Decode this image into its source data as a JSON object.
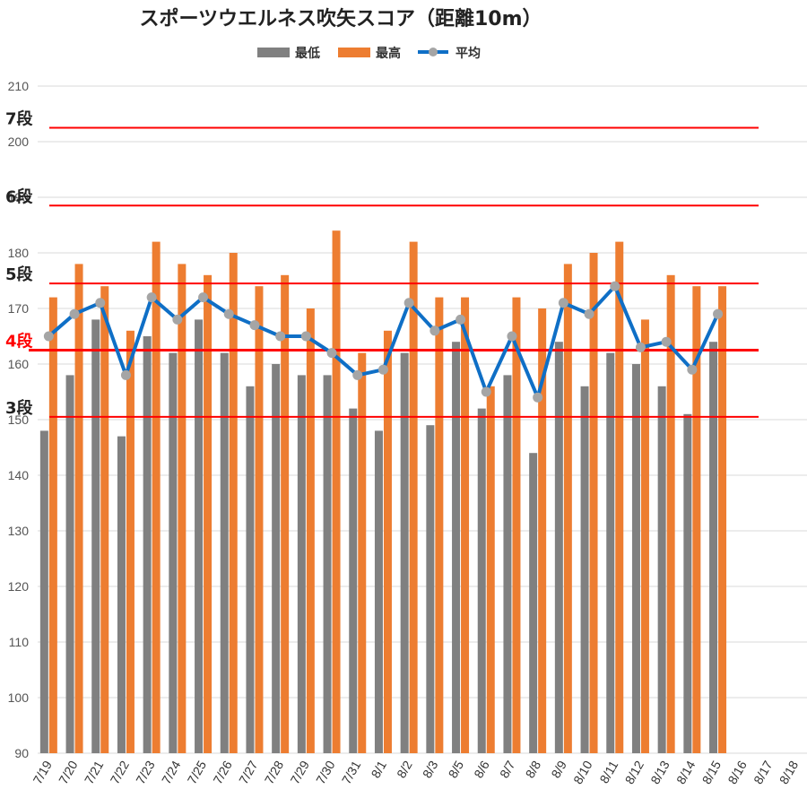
{
  "colors": {
    "min": "#808080",
    "max": "#ed7d31",
    "avg_line": "#0f6fc6",
    "avg_marker": "#a5a5a5",
    "rank_line": "#ff0000",
    "grid": "#d9d9d9"
  },
  "chart_data": {
    "type": "bar",
    "title": "スポーツウエルネス吹矢スコア（距離10m）",
    "categories": [
      "7/19",
      "7/20",
      "7/21",
      "7/22",
      "7/23",
      "7/24",
      "7/25",
      "7/26",
      "7/27",
      "7/28",
      "7/29",
      "7/30",
      "7/31",
      "8/1",
      "8/2",
      "8/3",
      "8/5",
      "8/6",
      "8/7",
      "8/8",
      "8/9",
      "8/10",
      "8/11",
      "8/12",
      "8/13",
      "8/14",
      "8/15",
      "8/16",
      "8/17",
      "8/18"
    ],
    "ylim": [
      90,
      210
    ],
    "yticks": [
      "90",
      "100",
      "110",
      "120",
      "130",
      "140",
      "150",
      "160",
      "170",
      "180",
      "190",
      "200",
      "210"
    ],
    "grid": true,
    "legend_position": "top",
    "series": [
      {
        "name": "最低",
        "kind": "bar",
        "values": [
          148,
          158,
          168,
          147,
          165,
          162,
          168,
          162,
          156,
          160,
          158,
          158,
          152,
          148,
          162,
          149,
          164,
          152,
          158,
          144,
          164,
          156,
          162,
          160,
          156,
          151,
          164,
          null,
          null,
          null
        ]
      },
      {
        "name": "最高",
        "kind": "bar",
        "values": [
          172,
          178,
          174,
          166,
          182,
          178,
          176,
          180,
          174,
          176,
          170,
          184,
          162,
          166,
          182,
          172,
          172,
          156,
          172,
          170,
          178,
          180,
          182,
          168,
          176,
          174,
          174,
          null,
          null,
          null
        ]
      },
      {
        "name": "平均",
        "kind": "line",
        "values": [
          165,
          169,
          171,
          158,
          172,
          168,
          172,
          169,
          167,
          165,
          165,
          162,
          158,
          159,
          171,
          166,
          168,
          155,
          165,
          154,
          171,
          169,
          174,
          163,
          164,
          159,
          169,
          null,
          null,
          null
        ]
      }
    ],
    "rank_lines": [
      {
        "label": "7段",
        "value": 202.5,
        "highlight": false
      },
      {
        "label": "6段",
        "value": 188.5,
        "highlight": false
      },
      {
        "label": "5段",
        "value": 174.5,
        "highlight": false
      },
      {
        "label": "4段",
        "value": 162.5,
        "highlight": true
      },
      {
        "label": "3段",
        "value": 150.5,
        "highlight": false
      }
    ]
  }
}
